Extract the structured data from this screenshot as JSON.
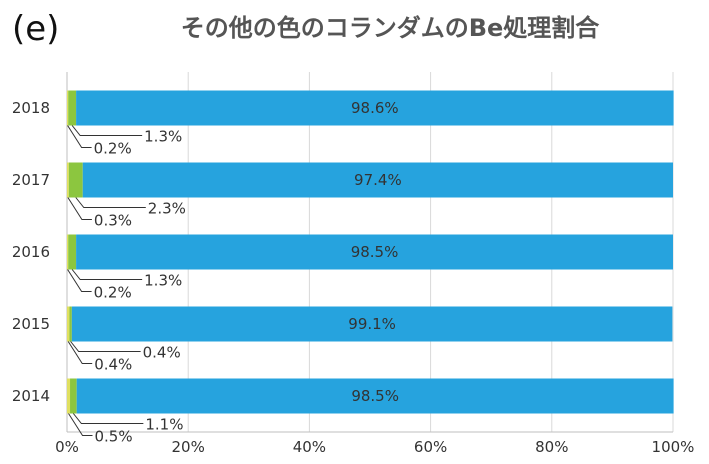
{
  "panel_label": "(e)",
  "chart_data": {
    "type": "bar",
    "orientation": "horizontal",
    "stacked": true,
    "title": "その他の色のコランダムのBe処理割合",
    "xlabel": "",
    "ylabel": "",
    "xlim": [
      0,
      100
    ],
    "x_ticks": [
      "0%",
      "20%",
      "40%",
      "60%",
      "80%",
      "100%"
    ],
    "grid": "vertical",
    "categories": [
      "2018",
      "2017",
      "2016",
      "2015",
      "2014"
    ],
    "series": [
      {
        "color": "#e0e060",
        "values": [
          0.2,
          0.3,
          0.2,
          0.4,
          0.5
        ],
        "labels": [
          "0.2%",
          "0.3%",
          "0.2%",
          "0.4%",
          "0.5%"
        ]
      },
      {
        "color": "#8cc63f",
        "values": [
          1.3,
          2.3,
          1.3,
          0.4,
          1.1
        ],
        "labels": [
          "1.3%",
          "2.3%",
          "1.3%",
          "0.4%",
          "1.1%"
        ]
      },
      {
        "color": "#26a3de",
        "values": [
          98.6,
          97.4,
          98.5,
          99.1,
          98.5
        ],
        "labels": [
          "98.6%",
          "97.4%",
          "98.5%",
          "99.1%",
          "98.5%"
        ]
      }
    ]
  }
}
